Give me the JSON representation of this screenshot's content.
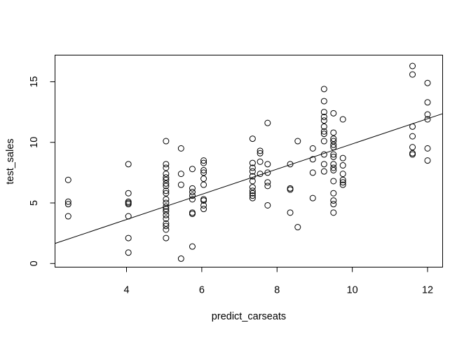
{
  "chart_data": {
    "type": "scatter",
    "title": "",
    "xlabel": "predict_carseats",
    "ylabel": "test_sales",
    "xlim": [
      2.1,
      12.4
    ],
    "ylim": [
      -0.3,
      17.2
    ],
    "xticks": [
      4,
      6,
      8,
      10,
      12
    ],
    "yticks": [
      0,
      5,
      10,
      15
    ],
    "grid": false,
    "points": [
      [
        2.45,
        6.9
      ],
      [
        2.45,
        5.1
      ],
      [
        2.45,
        4.9
      ],
      [
        2.45,
        3.9
      ],
      [
        4.05,
        8.2
      ],
      [
        4.05,
        5.8
      ],
      [
        4.05,
        5.1
      ],
      [
        4.05,
        5.0
      ],
      [
        4.05,
        4.9
      ],
      [
        4.05,
        3.9
      ],
      [
        4.05,
        2.1
      ],
      [
        4.05,
        0.9
      ],
      [
        5.05,
        10.1
      ],
      [
        5.05,
        8.2
      ],
      [
        5.05,
        7.9
      ],
      [
        5.05,
        7.4
      ],
      [
        5.05,
        7.1
      ],
      [
        5.05,
        6.9
      ],
      [
        5.05,
        6.6
      ],
      [
        5.05,
        6.4
      ],
      [
        5.05,
        6.0
      ],
      [
        5.05,
        5.8
      ],
      [
        5.05,
        5.3
      ],
      [
        5.05,
        5.0
      ],
      [
        5.05,
        4.7
      ],
      [
        5.05,
        4.5
      ],
      [
        5.05,
        4.3
      ],
      [
        5.05,
        4.0
      ],
      [
        5.05,
        3.7
      ],
      [
        5.05,
        3.3
      ],
      [
        5.05,
        3.1
      ],
      [
        5.05,
        2.8
      ],
      [
        5.05,
        2.1
      ],
      [
        5.45,
        9.5
      ],
      [
        5.45,
        7.4
      ],
      [
        5.45,
        6.5
      ],
      [
        5.45,
        0.4
      ],
      [
        5.75,
        7.8
      ],
      [
        5.75,
        6.2
      ],
      [
        5.75,
        5.9
      ],
      [
        5.75,
        5.6
      ],
      [
        5.75,
        5.3
      ],
      [
        5.75,
        4.2
      ],
      [
        5.75,
        4.1
      ],
      [
        5.75,
        1.4
      ],
      [
        6.05,
        8.5
      ],
      [
        6.05,
        8.3
      ],
      [
        6.05,
        7.7
      ],
      [
        6.05,
        7.5
      ],
      [
        6.05,
        7.0
      ],
      [
        6.05,
        6.5
      ],
      [
        6.05,
        5.3
      ],
      [
        6.05,
        5.2
      ],
      [
        6.05,
        4.8
      ],
      [
        6.05,
        4.5
      ],
      [
        7.35,
        10.3
      ],
      [
        7.35,
        8.3
      ],
      [
        7.35,
        7.9
      ],
      [
        7.35,
        7.6
      ],
      [
        7.35,
        7.2
      ],
      [
        7.35,
        6.8
      ],
      [
        7.35,
        6.3
      ],
      [
        7.35,
        6.0
      ],
      [
        7.35,
        5.8
      ],
      [
        7.35,
        5.6
      ],
      [
        7.35,
        5.4
      ],
      [
        7.55,
        9.3
      ],
      [
        7.55,
        9.1
      ],
      [
        7.55,
        8.4
      ],
      [
        7.55,
        7.4
      ],
      [
        7.75,
        11.6
      ],
      [
        7.75,
        8.2
      ],
      [
        7.75,
        7.5
      ],
      [
        7.75,
        6.7
      ],
      [
        7.75,
        6.4
      ],
      [
        7.75,
        4.8
      ],
      [
        8.35,
        8.2
      ],
      [
        8.35,
        6.2
      ],
      [
        8.35,
        6.1
      ],
      [
        8.35,
        4.2
      ],
      [
        8.55,
        10.1
      ],
      [
        8.55,
        3.0
      ],
      [
        8.95,
        9.5
      ],
      [
        8.95,
        8.6
      ],
      [
        8.95,
        7.5
      ],
      [
        8.95,
        5.4
      ],
      [
        9.25,
        14.4
      ],
      [
        9.25,
        13.4
      ],
      [
        9.25,
        12.5
      ],
      [
        9.25,
        12.1
      ],
      [
        9.25,
        11.8
      ],
      [
        9.25,
        11.3
      ],
      [
        9.25,
        10.9
      ],
      [
        9.25,
        10.7
      ],
      [
        9.25,
        10.1
      ],
      [
        9.25,
        9.0
      ],
      [
        9.25,
        8.2
      ],
      [
        9.25,
        7.6
      ],
      [
        9.5,
        12.4
      ],
      [
        9.5,
        10.8
      ],
      [
        9.5,
        10.3
      ],
      [
        9.5,
        10.1
      ],
      [
        9.5,
        9.8
      ],
      [
        9.5,
        9.6
      ],
      [
        9.5,
        9.0
      ],
      [
        9.5,
        8.8
      ],
      [
        9.5,
        8.2
      ],
      [
        9.5,
        7.9
      ],
      [
        9.5,
        7.7
      ],
      [
        9.5,
        6.8
      ],
      [
        9.5,
        5.8
      ],
      [
        9.5,
        5.2
      ],
      [
        9.5,
        4.9
      ],
      [
        9.5,
        4.2
      ],
      [
        9.75,
        11.9
      ],
      [
        9.75,
        8.7
      ],
      [
        9.75,
        8.1
      ],
      [
        9.75,
        7.4
      ],
      [
        9.75,
        6.9
      ],
      [
        9.75,
        6.7
      ],
      [
        9.75,
        6.5
      ],
      [
        11.6,
        16.3
      ],
      [
        11.6,
        15.6
      ],
      [
        11.6,
        11.3
      ],
      [
        11.6,
        10.5
      ],
      [
        11.6,
        9.6
      ],
      [
        11.6,
        9.1
      ],
      [
        11.6,
        9.0
      ],
      [
        12.0,
        14.9
      ],
      [
        12.0,
        13.3
      ],
      [
        12.0,
        12.3
      ],
      [
        12.0,
        11.9
      ],
      [
        12.0,
        9.5
      ],
      [
        12.0,
        8.5
      ]
    ],
    "fit_line": {
      "intercept": -0.53,
      "slope": 1.04
    }
  }
}
